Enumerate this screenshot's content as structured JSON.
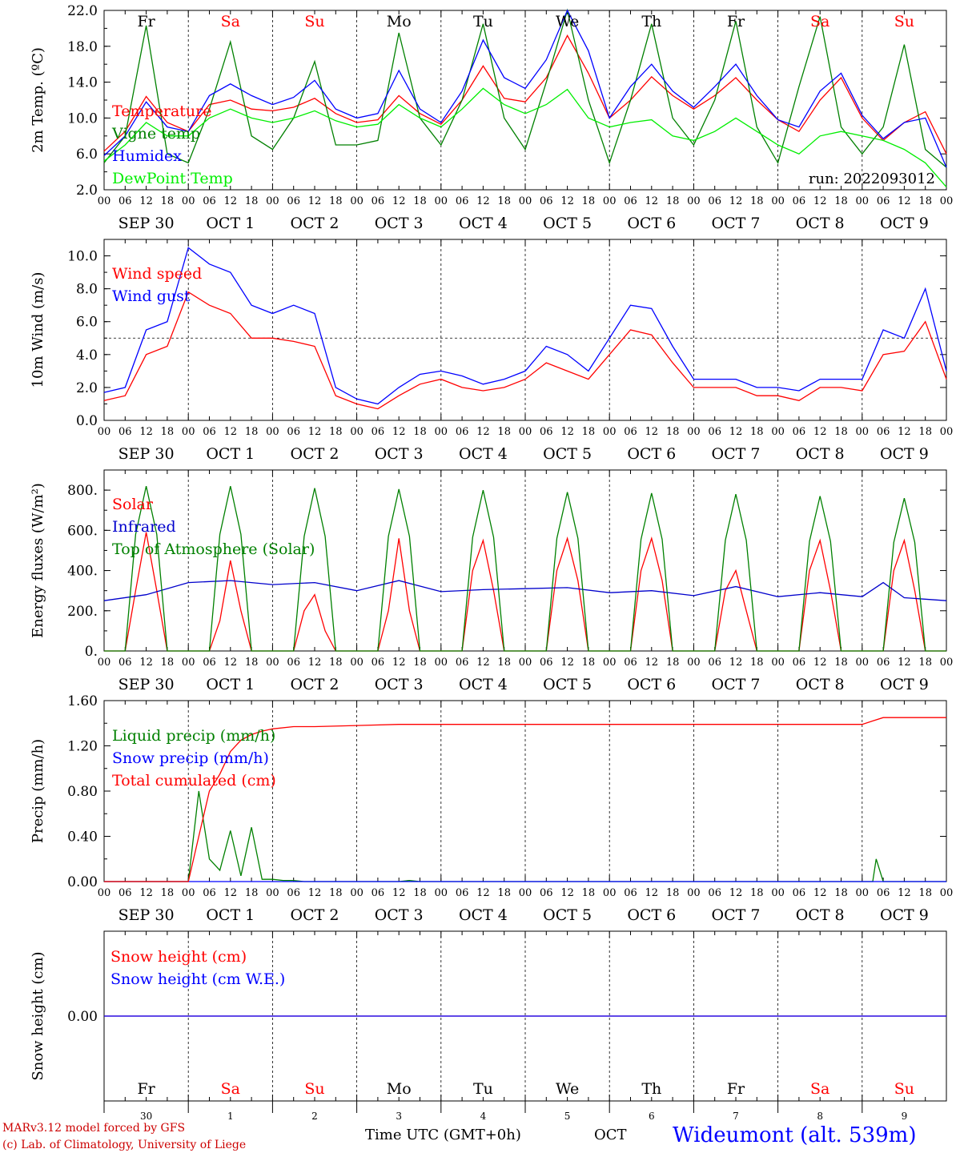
{
  "chart_data": [
    {
      "type": "line",
      "ylabel": "2m Temp. (ºC)",
      "ylim": [
        2.0,
        22.0
      ],
      "yticks": [
        "2.0",
        "6.0",
        "10.0",
        "14.0",
        "18.0",
        "22.0"
      ],
      "annotation": "run: 2022093012",
      "threshold": null,
      "series": [
        {
          "name": "Temperature",
          "color": "#ff0000",
          "x": [
            0,
            6,
            12,
            18,
            24,
            30,
            36,
            42,
            48,
            54,
            60,
            66,
            72,
            78,
            84,
            90,
            96,
            102,
            108,
            114,
            120,
            126,
            132,
            138,
            144,
            150,
            156,
            162,
            168,
            174,
            180,
            186,
            192,
            198,
            204,
            210,
            216,
            222,
            228,
            234,
            240
          ],
          "values": [
            6.3,
            8.5,
            12.4,
            9.5,
            8.5,
            11.5,
            12.0,
            11.0,
            10.8,
            11.2,
            12.2,
            10.5,
            9.5,
            9.8,
            12.5,
            10.5,
            9.3,
            12.0,
            15.8,
            12.2,
            11.8,
            14.5,
            19.2,
            15.0,
            10.0,
            12.0,
            14.6,
            12.5,
            11.0,
            12.5,
            14.5,
            12.0,
            9.8,
            8.5,
            12.0,
            14.5,
            10.0,
            7.5,
            9.5,
            10.7,
            6.0
          ]
        },
        {
          "name": "Vigne temp",
          "color": "#008000",
          "x": [
            0,
            6,
            12,
            18,
            24,
            30,
            36,
            42,
            48,
            54,
            60,
            66,
            72,
            78,
            84,
            90,
            96,
            102,
            108,
            114,
            120,
            126,
            132,
            138,
            144,
            150,
            156,
            162,
            168,
            174,
            180,
            186,
            192,
            198,
            204,
            210,
            216,
            222,
            228,
            234,
            240
          ],
          "values": [
            5.0,
            8.0,
            20.3,
            6.0,
            5.0,
            11.0,
            18.5,
            8.0,
            6.5,
            10.0,
            16.3,
            7.0,
            7.0,
            7.5,
            19.5,
            10.0,
            7.0,
            12.0,
            20.5,
            10.0,
            6.5,
            14.0,
            22.0,
            12.0,
            5.0,
            12.0,
            20.5,
            10.0,
            7.0,
            12.0,
            20.8,
            9.0,
            5.0,
            13.5,
            21.3,
            9.0,
            6.0,
            9.0,
            18.2,
            6.5,
            4.5
          ]
        },
        {
          "name": "Humidex",
          "color": "#0000ff",
          "x": [
            0,
            6,
            12,
            18,
            24,
            30,
            36,
            42,
            48,
            54,
            60,
            66,
            72,
            78,
            84,
            90,
            96,
            102,
            108,
            114,
            120,
            126,
            132,
            138,
            144,
            150,
            156,
            162,
            168,
            174,
            180,
            186,
            192,
            198,
            204,
            210,
            216,
            222,
            228,
            234,
            240
          ],
          "values": [
            5.8,
            8.0,
            11.8,
            9.0,
            8.5,
            12.5,
            13.8,
            12.5,
            11.5,
            12.3,
            14.2,
            11.0,
            10.0,
            10.5,
            15.3,
            11.0,
            9.5,
            13.0,
            18.7,
            14.5,
            13.3,
            16.5,
            22.0,
            17.5,
            10.0,
            13.5,
            16.0,
            13.0,
            11.2,
            13.5,
            16.0,
            12.5,
            9.8,
            9.0,
            13.0,
            15.0,
            10.3,
            7.7,
            9.5,
            10.0,
            4.5
          ]
        },
        {
          "name": "DewPoint Temp",
          "color": "#00ee00",
          "x": [
            0,
            6,
            12,
            18,
            24,
            30,
            36,
            42,
            48,
            54,
            60,
            66,
            72,
            78,
            84,
            90,
            96,
            102,
            108,
            114,
            120,
            126,
            132,
            138,
            144,
            150,
            156,
            162,
            168,
            174,
            180,
            186,
            192,
            198,
            204,
            210,
            216,
            222,
            228,
            234,
            240
          ],
          "values": [
            5.2,
            7.0,
            9.5,
            8.0,
            8.0,
            10.0,
            11.0,
            10.0,
            9.5,
            10.0,
            10.8,
            9.7,
            9.0,
            9.3,
            11.5,
            10.0,
            9.0,
            11.0,
            13.3,
            11.5,
            10.5,
            11.5,
            13.2,
            10.0,
            9.0,
            9.5,
            9.8,
            8.0,
            7.5,
            8.5,
            10.0,
            8.5,
            7.0,
            6.0,
            8.0,
            8.5,
            8.0,
            7.5,
            6.5,
            5.0,
            2.3
          ]
        }
      ]
    },
    {
      "type": "line",
      "ylabel": "10m Wind (m/s)",
      "ylim": [
        0.0,
        11.0
      ],
      "yticks": [
        "0.0",
        "2.0",
        "4.0",
        "6.0",
        "8.0",
        "10.0"
      ],
      "threshold": 5.0,
      "series": [
        {
          "name": "Wind speed",
          "color": "#ff0000",
          "x": [
            0,
            6,
            12,
            18,
            24,
            30,
            36,
            42,
            48,
            54,
            60,
            66,
            72,
            78,
            84,
            90,
            96,
            102,
            108,
            114,
            120,
            126,
            132,
            138,
            144,
            150,
            156,
            162,
            168,
            174,
            180,
            186,
            192,
            198,
            204,
            210,
            216,
            222,
            228,
            234,
            240
          ],
          "values": [
            1.2,
            1.5,
            4.0,
            4.5,
            7.8,
            7.0,
            6.5,
            5.0,
            5.0,
            4.8,
            4.5,
            1.5,
            1.0,
            0.7,
            1.5,
            2.2,
            2.5,
            2.0,
            1.8,
            2.0,
            2.5,
            3.5,
            3.0,
            2.5,
            4.0,
            5.5,
            5.2,
            3.5,
            2.0,
            2.0,
            2.0,
            1.5,
            1.5,
            1.2,
            2.0,
            2.0,
            1.8,
            4.0,
            4.2,
            6.0,
            2.5
          ]
        },
        {
          "name": "Wind gust",
          "color": "#0000ff",
          "x": [
            0,
            6,
            12,
            18,
            24,
            30,
            36,
            42,
            48,
            54,
            60,
            66,
            72,
            78,
            84,
            90,
            96,
            102,
            108,
            114,
            120,
            126,
            132,
            138,
            144,
            150,
            156,
            162,
            168,
            174,
            180,
            186,
            192,
            198,
            204,
            210,
            216,
            222,
            228,
            234,
            240
          ],
          "values": [
            1.7,
            2.0,
            5.5,
            6.0,
            10.5,
            9.5,
            9.0,
            7.0,
            6.5,
            7.0,
            6.5,
            2.0,
            1.3,
            1.0,
            2.0,
            2.8,
            3.0,
            2.7,
            2.2,
            2.5,
            3.0,
            4.5,
            4.0,
            3.0,
            5.0,
            7.0,
            6.8,
            4.5,
            2.5,
            2.5,
            2.5,
            2.0,
            2.0,
            1.8,
            2.5,
            2.5,
            2.5,
            5.5,
            5.0,
            8.0,
            3.0
          ]
        }
      ]
    },
    {
      "type": "line",
      "ylabel": "Energy fluxes (W/m²)",
      "ylim": [
        0,
        900
      ],
      "yticks": [
        "0.",
        "200.",
        "400.",
        "600.",
        "800."
      ],
      "threshold": null,
      "series": [
        {
          "name": "Solar",
          "color": "#ff0000",
          "x": [
            0,
            6,
            9,
            12,
            15,
            18,
            24,
            30,
            33,
            36,
            39,
            42,
            48,
            54,
            57,
            60,
            63,
            66,
            72,
            78,
            81,
            84,
            87,
            90,
            96,
            102,
            105,
            108,
            111,
            114,
            120,
            126,
            129,
            132,
            135,
            138,
            144,
            150,
            153,
            156,
            159,
            162,
            168,
            174,
            177,
            180,
            183,
            186,
            192,
            198,
            201,
            204,
            207,
            210,
            216,
            222,
            225,
            228,
            231,
            234,
            240
          ],
          "values": [
            0,
            0,
            300,
            590,
            300,
            0,
            0,
            0,
            150,
            450,
            200,
            0,
            0,
            0,
            200,
            280,
            100,
            0,
            0,
            0,
            200,
            560,
            200,
            0,
            0,
            0,
            400,
            550,
            300,
            0,
            0,
            0,
            400,
            560,
            350,
            0,
            0,
            0,
            400,
            560,
            350,
            0,
            0,
            0,
            300,
            400,
            200,
            0,
            0,
            0,
            400,
            550,
            300,
            0,
            0,
            0,
            400,
            550,
            300,
            0,
            0
          ]
        },
        {
          "name": "Infrared",
          "color": "#0000cc",
          "x": [
            0,
            12,
            24,
            36,
            48,
            60,
            72,
            84,
            96,
            108,
            120,
            132,
            144,
            156,
            168,
            180,
            192,
            204,
            216,
            222,
            228,
            240
          ],
          "values": [
            250,
            280,
            340,
            350,
            330,
            340,
            300,
            350,
            295,
            305,
            310,
            315,
            290,
            300,
            275,
            320,
            270,
            290,
            270,
            340,
            265,
            250
          ]
        },
        {
          "name": "Top of Atmosphere (Solar)",
          "color": "#008000",
          "x": [
            0,
            6,
            9,
            12,
            15,
            18,
            24,
            30,
            33,
            36,
            39,
            42,
            48,
            54,
            57,
            60,
            63,
            66,
            72,
            78,
            81,
            84,
            87,
            90,
            96,
            102,
            105,
            108,
            111,
            114,
            120,
            126,
            129,
            132,
            135,
            138,
            144,
            150,
            153,
            156,
            159,
            162,
            168,
            174,
            177,
            180,
            183,
            186,
            192,
            198,
            201,
            204,
            207,
            210,
            216,
            222,
            225,
            228,
            231,
            234,
            240
          ],
          "values": [
            0,
            0,
            580,
            820,
            580,
            0,
            0,
            0,
            580,
            820,
            580,
            0,
            0,
            0,
            570,
            810,
            570,
            0,
            0,
            0,
            570,
            805,
            570,
            0,
            0,
            0,
            565,
            800,
            565,
            0,
            0,
            0,
            560,
            790,
            560,
            0,
            0,
            0,
            555,
            785,
            555,
            0,
            0,
            0,
            550,
            780,
            550,
            0,
            0,
            0,
            545,
            770,
            545,
            0,
            0,
            0,
            540,
            760,
            540,
            0,
            0
          ]
        }
      ]
    },
    {
      "type": "line",
      "ylabel": "Precip (mm/h)",
      "ylim": [
        0.0,
        1.6
      ],
      "yticks": [
        "0.00",
        "0.40",
        "0.80",
        "1.20",
        "1.60"
      ],
      "threshold": null,
      "series": [
        {
          "name": "Liquid precip (mm/h)",
          "color": "#008000",
          "x": [
            0,
            24,
            27,
            30,
            33,
            36,
            39,
            42,
            45,
            48,
            51,
            54,
            57,
            60,
            72,
            84,
            87,
            90,
            216,
            219,
            220,
            222,
            240
          ],
          "values": [
            0,
            0,
            0.8,
            0.2,
            0.1,
            0.45,
            0.05,
            0.48,
            0.02,
            0.02,
            0.01,
            0.01,
            0,
            0,
            0,
            0,
            0.01,
            0,
            0,
            0,
            0.2,
            0,
            0
          ]
        },
        {
          "name": "Snow precip (mm/h)",
          "color": "#0000ff",
          "x": [
            0,
            240
          ],
          "values": [
            0,
            0
          ]
        },
        {
          "name": "Total cumulated (cm)",
          "color": "#ff0000",
          "x": [
            0,
            24,
            27,
            30,
            33,
            36,
            39,
            42,
            45,
            48,
            54,
            60,
            72,
            84,
            96,
            120,
            144,
            168,
            192,
            216,
            219,
            222,
            240
          ],
          "values": [
            0,
            0,
            0.4,
            0.8,
            0.95,
            1.15,
            1.25,
            1.3,
            1.33,
            1.35,
            1.37,
            1.37,
            1.38,
            1.39,
            1.39,
            1.39,
            1.39,
            1.39,
            1.39,
            1.39,
            1.42,
            1.45,
            1.45
          ]
        }
      ]
    },
    {
      "type": "line",
      "ylabel": "Snow height (cm)",
      "ylim": [
        -1.0,
        1.0
      ],
      "yticks": [
        "0.00"
      ],
      "threshold": null,
      "series": [
        {
          "name": "Snow height (cm)",
          "color": "#ff0000",
          "x": [
            0,
            240
          ],
          "values": [
            0,
            0
          ]
        },
        {
          "name": "Snow height (cm W.E.)",
          "color": "#0000ff",
          "x": [
            0,
            240
          ],
          "values": [
            0,
            0
          ]
        }
      ]
    }
  ],
  "days": [
    {
      "abbr": "Fr",
      "weekend": false,
      "num": "30",
      "date": "SEP 30"
    },
    {
      "abbr": "Sa",
      "weekend": true,
      "num": "1",
      "date": "OCT  1"
    },
    {
      "abbr": "Su",
      "weekend": true,
      "num": "2",
      "date": "OCT  2"
    },
    {
      "abbr": "Mo",
      "weekend": false,
      "num": "3",
      "date": "OCT  3"
    },
    {
      "abbr": "Tu",
      "weekend": false,
      "num": "4",
      "date": "OCT  4"
    },
    {
      "abbr": "We",
      "weekend": false,
      "num": "5",
      "date": "OCT  5"
    },
    {
      "abbr": "Th",
      "weekend": false,
      "num": "6",
      "date": "OCT  6"
    },
    {
      "abbr": "Fr",
      "weekend": false,
      "num": "7",
      "date": "OCT  7"
    },
    {
      "abbr": "Sa",
      "weekend": true,
      "num": "8",
      "date": "OCT  8"
    },
    {
      "abbr": "Su",
      "weekend": true,
      "num": "9",
      "date": "OCT  9"
    }
  ],
  "hour_ticks": [
    "00",
    "06",
    "12",
    "18"
  ],
  "last_hour_tick": "00",
  "colors": {
    "weekday": "#000000",
    "weekend": "#ff0000",
    "axis": "#000000",
    "station": "#0000ff",
    "credit": "#cc0000"
  },
  "footer": {
    "model_line": "MARv3.12 model forced by GFS",
    "credit_line": "(c) Lab. of Climatology, University of Liege",
    "time_label": "Time UTC (GMT+0h)",
    "month_label": "OCT",
    "station": "Wideumont (alt. 539m)"
  }
}
